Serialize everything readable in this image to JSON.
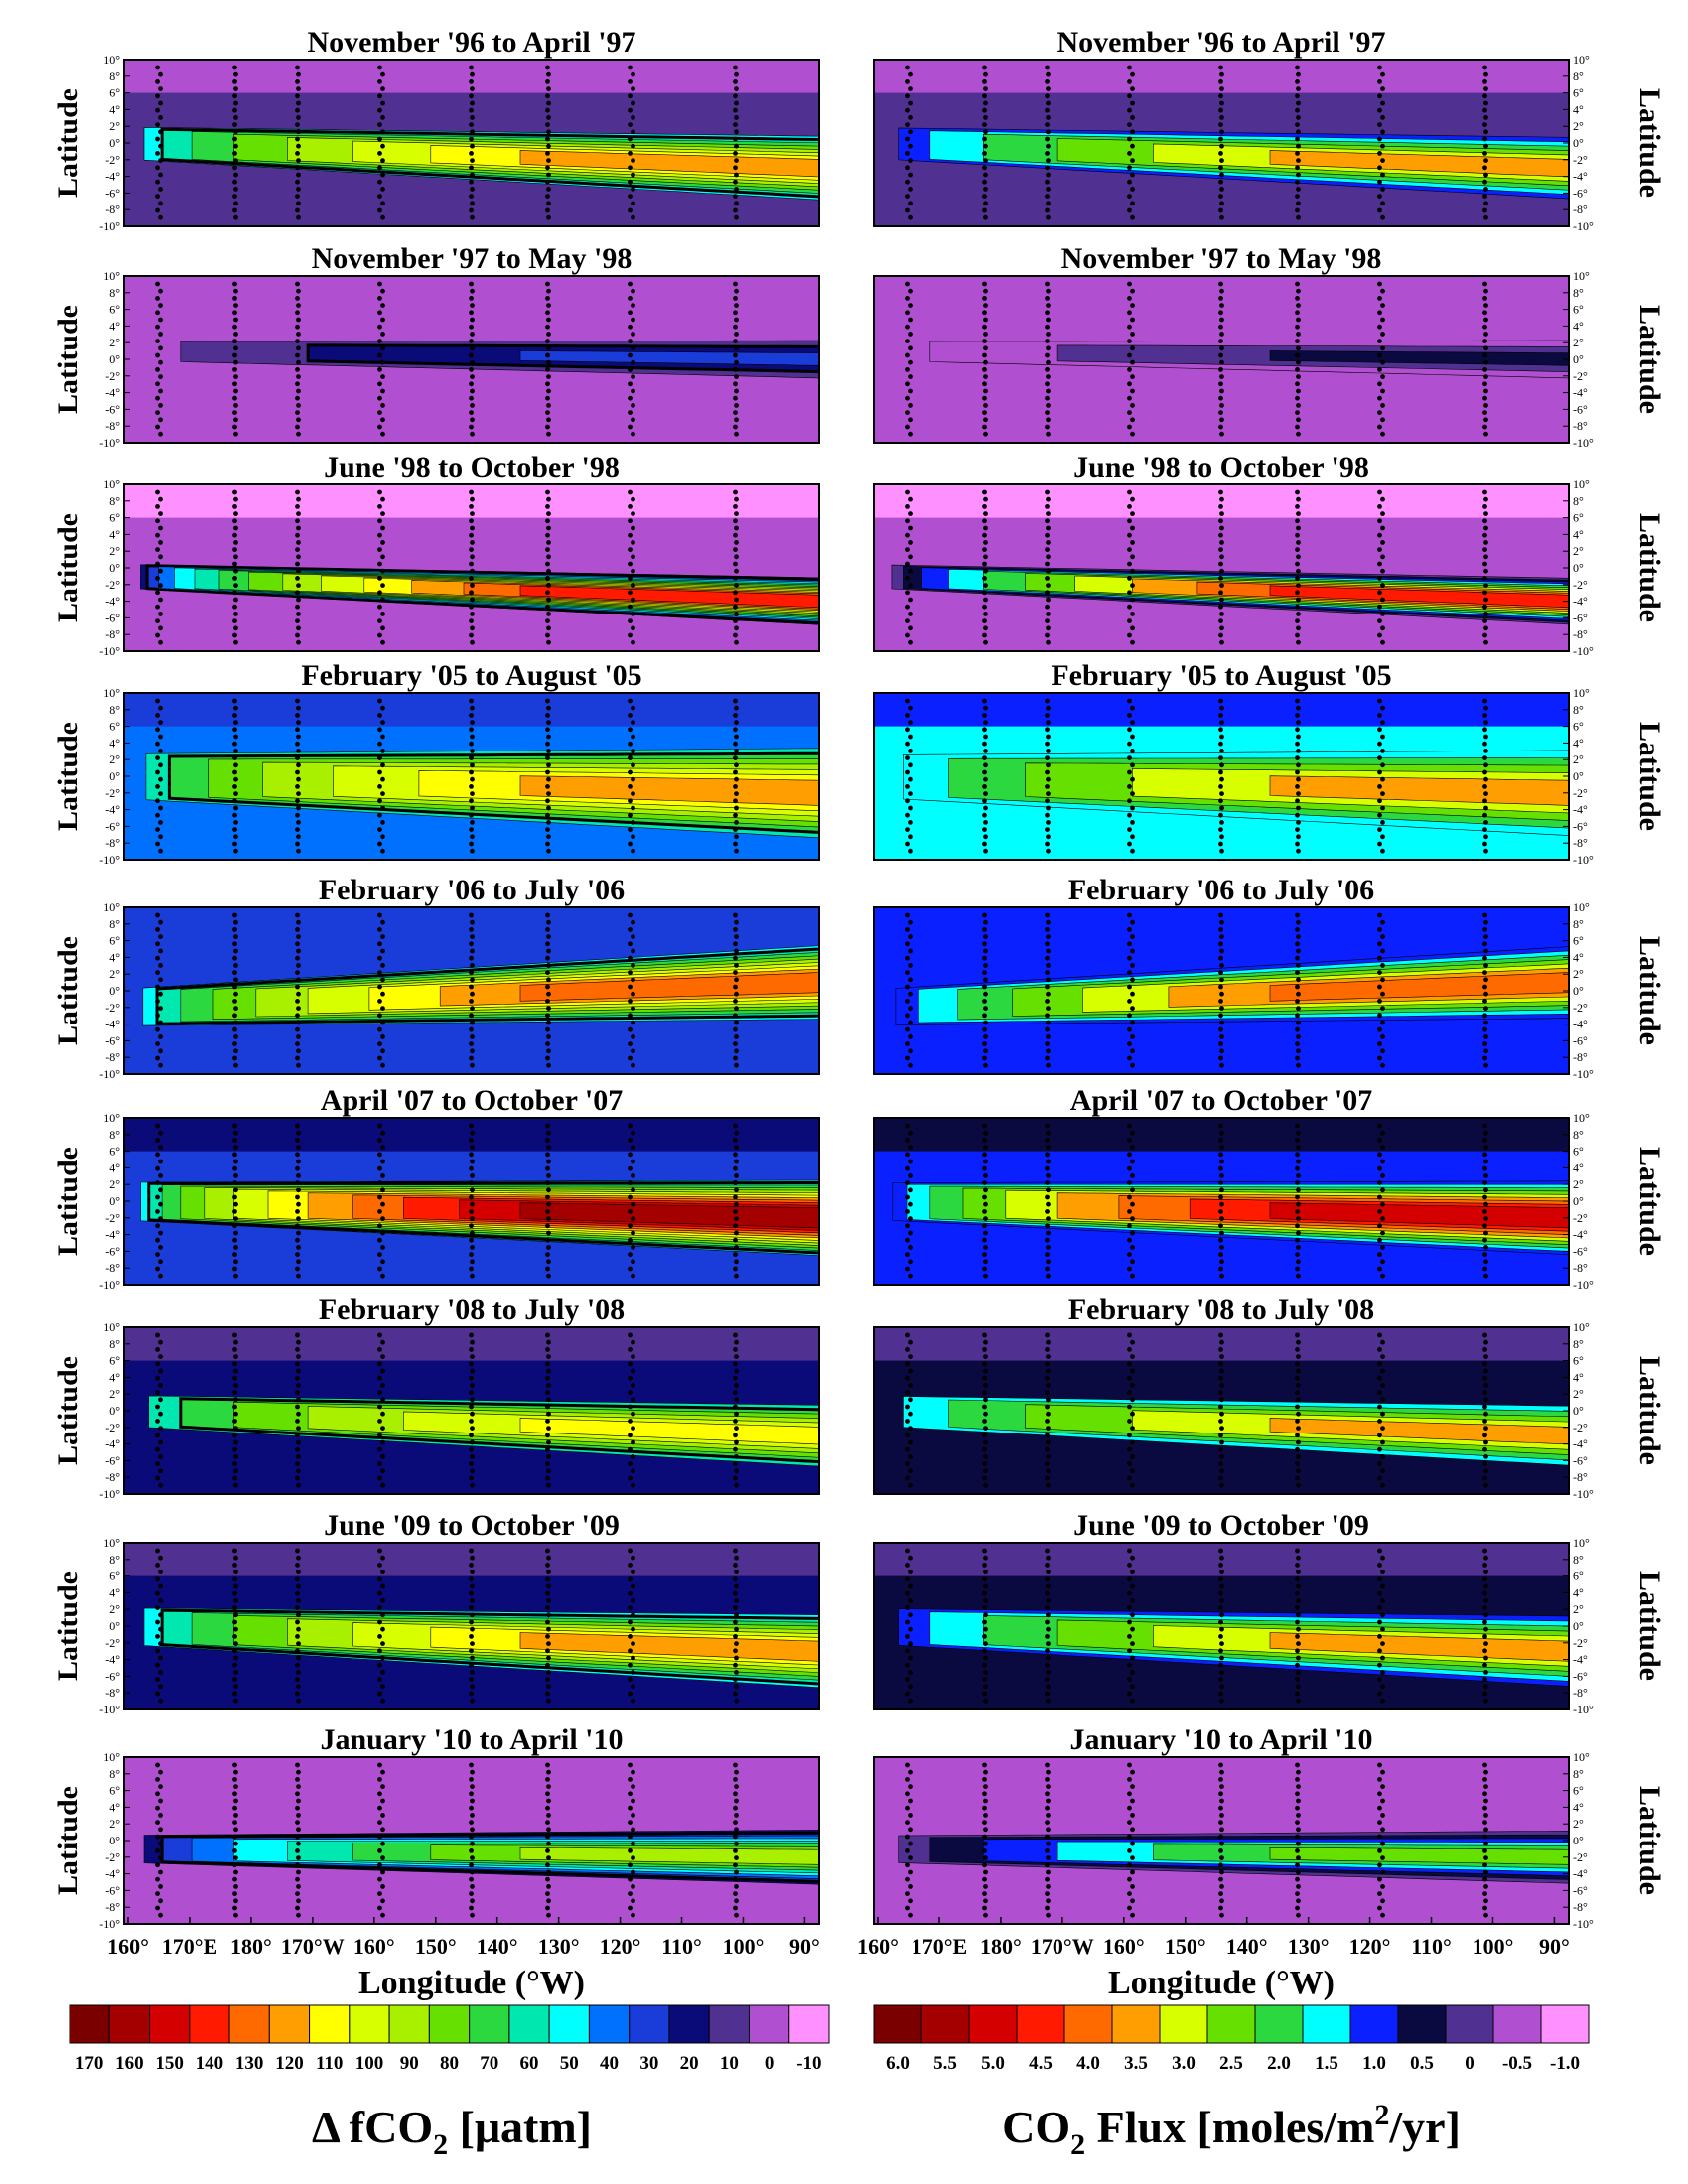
{
  "chart_data": [
    {
      "type": "heatmap",
      "title": "November '96 to April '97",
      "panel": "dfco2",
      "ylabel": "Latitude",
      "pattern": "v1"
    },
    {
      "type": "heatmap",
      "title": "November '96 to April '97",
      "panel": "flux",
      "ylabel": "Latitude",
      "pattern": "v1"
    },
    {
      "type": "heatmap",
      "title": "November '97 to May '98",
      "panel": "dfco2",
      "ylabel": "Latitude",
      "pattern": "v2"
    },
    {
      "type": "heatmap",
      "title": "November '97 to May '98",
      "panel": "flux",
      "ylabel": "Latitude",
      "pattern": "v2"
    },
    {
      "type": "heatmap",
      "title": "June '98 to October '98",
      "panel": "dfco2",
      "ylabel": "Latitude",
      "pattern": "v3"
    },
    {
      "type": "heatmap",
      "title": "June '98 to October '98",
      "panel": "flux",
      "ylabel": "Latitude",
      "pattern": "v3"
    },
    {
      "type": "heatmap",
      "title": "February '05 to August '05",
      "panel": "dfco2",
      "ylabel": "Latitude",
      "pattern": "v4"
    },
    {
      "type": "heatmap",
      "title": "February '05 to August '05",
      "panel": "flux",
      "ylabel": "Latitude",
      "pattern": "v4"
    },
    {
      "type": "heatmap",
      "title": "February '06 to July '06",
      "panel": "dfco2",
      "ylabel": "Latitude",
      "pattern": "v5"
    },
    {
      "type": "heatmap",
      "title": "February '06 to July '06",
      "panel": "flux",
      "ylabel": "Latitude",
      "pattern": "v5"
    },
    {
      "type": "heatmap",
      "title": "April '07 to October '07",
      "panel": "dfco2",
      "ylabel": "Latitude",
      "pattern": "v6"
    },
    {
      "type": "heatmap",
      "title": "April '07 to October '07",
      "panel": "flux",
      "ylabel": "Latitude",
      "pattern": "v6"
    },
    {
      "type": "heatmap",
      "title": "February '08 to July '08",
      "panel": "dfco2",
      "ylabel": "Latitude",
      "pattern": "v7"
    },
    {
      "type": "heatmap",
      "title": "February '08 to July '08",
      "panel": "flux",
      "ylabel": "Latitude",
      "pattern": "v7"
    },
    {
      "type": "heatmap",
      "title": "June '09 to October '09",
      "panel": "dfco2",
      "ylabel": "Latitude",
      "pattern": "v8"
    },
    {
      "type": "heatmap",
      "title": "June '09 to October '09",
      "panel": "flux",
      "ylabel": "Latitude",
      "pattern": "v8"
    },
    {
      "type": "heatmap",
      "title": "January '10 to April '10",
      "panel": "dfco2",
      "ylabel": "Latitude",
      "pattern": "v9"
    },
    {
      "type": "heatmap",
      "title": "January '10 to April '10",
      "panel": "flux",
      "ylabel": "Latitude",
      "pattern": "v9"
    }
  ],
  "lat_ticks": [
    "10°",
    "8°",
    "6°",
    "4°",
    "2°",
    "0°",
    "-2°",
    "-4°",
    "-6°",
    "-8°",
    "-10°"
  ],
  "lon_ticks": [
    "160°",
    "170°E",
    "180°",
    "170°W",
    "160°",
    "150°",
    "140°",
    "130°",
    "120°",
    "110°",
    "100°",
    "90°"
  ],
  "x_axis_label": "Longitude (°W)",
  "colorbar_dfco2": {
    "labels": [
      "170",
      "160",
      "150",
      "140",
      "130",
      "120",
      "110",
      "100",
      "90",
      "80",
      "70",
      "60",
      "50",
      "40",
      "30",
      "20",
      "10",
      "0",
      "-10"
    ],
    "colors": [
      "#7a0000",
      "#a50000",
      "#d40000",
      "#ff1a00",
      "#ff6a00",
      "#ff9e00",
      "#ffff00",
      "#d8ff00",
      "#a8f000",
      "#66e000",
      "#2cd840",
      "#00e8b0",
      "#00ffff",
      "#0070ff",
      "#1a3cd8",
      "#0a0a78",
      "#503090",
      "#b050d0",
      "#ff90ff"
    ],
    "label_main": "Δ fCO",
    "label_sub": "2",
    "label_unit": " [μatm]"
  },
  "colorbar_flux": {
    "labels": [
      "6.0",
      "5.5",
      "5.0",
      "4.5",
      "4.0",
      "3.5",
      "3.0",
      "2.5",
      "2.0",
      "1.5",
      "1.0",
      "0.5",
      "0",
      "-0.5",
      "-1.0"
    ],
    "colors": [
      "#7a0000",
      "#a50000",
      "#d40000",
      "#ff1a00",
      "#ff6a00",
      "#ff9e00",
      "#d8ff00",
      "#66e000",
      "#2cd840",
      "#00ffff",
      "#0a20ff",
      "#0a0a40",
      "#503090",
      "#b050d0",
      "#ff90ff"
    ],
    "label_main": "CO",
    "label_sub": "2",
    "label_unit": " Flux [moles/m",
    "label_sup": "2",
    "label_end": "/yr]"
  }
}
